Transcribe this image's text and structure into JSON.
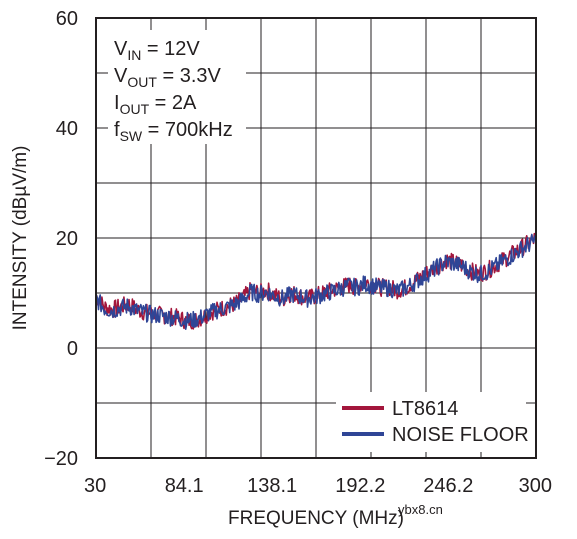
{
  "chart_data": {
    "type": "line",
    "xlabel": "FREQUENCY (MHz)",
    "ylabel": "INTENSITY (dBµV/m)",
    "xlim": [
      30,
      300
    ],
    "ylim": [
      -20,
      60
    ],
    "x_ticks": [
      30,
      84.1,
      138.1,
      192.2,
      246.2,
      300
    ],
    "x_tick_labels": [
      "30",
      "84.1",
      "138.1",
      "192.2",
      "246.2",
      "300"
    ],
    "y_ticks": [
      -20,
      0,
      20,
      40,
      60
    ],
    "y_tick_labels": [
      "−20",
      "0",
      "20",
      "40",
      "60"
    ],
    "grid": true,
    "legend_position": "bottom-right",
    "annotation": {
      "lines": [
        {
          "main": "V",
          "sub": "IN",
          "rest": " = 12V"
        },
        {
          "main": "V",
          "sub": "OUT",
          "rest": " = 3.3V"
        },
        {
          "main": "I",
          "sub": "OUT",
          "rest": " = 2A"
        },
        {
          "main": "f",
          "sub": "SW",
          "rest": " = 700kHz"
        }
      ]
    },
    "series": [
      {
        "name": "LT8614",
        "color": "#a3163c",
        "x": [
          30,
          35,
          40,
          45,
          50,
          55,
          60,
          65,
          70,
          75,
          80,
          85,
          90,
          95,
          100,
          105,
          110,
          115,
          120,
          125,
          130,
          135,
          140,
          145,
          150,
          155,
          160,
          165,
          170,
          175,
          180,
          185,
          190,
          195,
          200,
          205,
          210,
          215,
          220,
          225,
          230,
          235,
          240,
          245,
          250,
          255,
          260,
          265,
          270,
          275,
          280,
          285,
          290,
          295,
          300
        ],
        "values": [
          9.5,
          7.5,
          7,
          7.5,
          8,
          7,
          6.5,
          6.2,
          6,
          5.8,
          5.5,
          5,
          5,
          5.5,
          6.5,
          7,
          7.5,
          8,
          9,
          10.5,
          10,
          10.5,
          9.5,
          9,
          10,
          9.5,
          9,
          9.5,
          10,
          10.5,
          11,
          11.5,
          11,
          12,
          11.5,
          11,
          11,
          10.5,
          11,
          12,
          13,
          14,
          15,
          16,
          15.5,
          15,
          14,
          13.5,
          14,
          15,
          16,
          17,
          18,
          19,
          20
        ]
      },
      {
        "name": "NOISE FLOOR",
        "color": "#2f4596",
        "x": [
          30,
          35,
          40,
          45,
          50,
          55,
          60,
          65,
          70,
          75,
          80,
          85,
          90,
          95,
          100,
          105,
          110,
          115,
          120,
          125,
          130,
          135,
          140,
          145,
          150,
          155,
          160,
          165,
          170,
          175,
          180,
          185,
          190,
          195,
          200,
          205,
          210,
          215,
          220,
          225,
          230,
          235,
          240,
          245,
          250,
          255,
          260,
          265,
          270,
          275,
          280,
          285,
          290,
          295,
          300
        ],
        "values": [
          9,
          7.2,
          6.8,
          7.3,
          7.6,
          6.8,
          6.4,
          6,
          5.9,
          5.6,
          5.4,
          5,
          5.1,
          5.6,
          6.4,
          6.9,
          7.4,
          7.9,
          8.8,
          10.2,
          9.8,
          10.2,
          9.4,
          9,
          9.8,
          9.4,
          9,
          9.4,
          9.8,
          10.3,
          10.8,
          11.3,
          11,
          11.7,
          11.3,
          10.9,
          10.9,
          10.4,
          10.9,
          11.8,
          12.8,
          13.8,
          14.8,
          15.7,
          15.3,
          14.8,
          13.9,
          13.4,
          13.9,
          14.8,
          15.8,
          16.8,
          17.8,
          18.7,
          19.6
        ]
      }
    ]
  },
  "watermark": "ybx8.cn"
}
